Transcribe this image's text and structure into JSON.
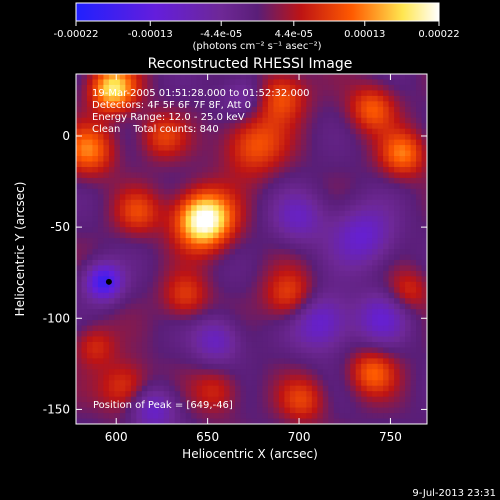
{
  "chart_data": {
    "type": "heatmap",
    "title": "Reconstructed RHESSI Image",
    "xlabel": "Heliocentric X (arcsec)",
    "ylabel": "Heliocentric Y (arcsec)",
    "xlim": [
      578,
      770
    ],
    "ylim": [
      -158,
      34
    ],
    "x_ticks": [
      600,
      650,
      700,
      750
    ],
    "y_ticks": [
      -150,
      -100,
      -50,
      0
    ],
    "colorbar": {
      "range": [
        -0.00022,
        0.00022
      ],
      "tick_values": [
        -0.00022,
        -0.00013,
        -4.4e-05,
        4.4e-05,
        0.00013,
        0.00022
      ],
      "tick_labels": [
        "-0.00022",
        "-0.00013",
        "-4.4e-05",
        "4.4e-05",
        "0.00013",
        "0.00022"
      ],
      "unit_label": "(photons cm⁻² s⁻¹ asec⁻²)",
      "colors": [
        "#2020ff",
        "#7020a0",
        "#c01010",
        "#ff6000",
        "#ffff80",
        "#ffffff"
      ]
    },
    "annotations": [
      "19-Mar-2005 01:51:28.000 to 01:52:32.000",
      "Detectors: 4F 5F 6F 7F 8F, Att 0",
      "Energy Range: 12.0 - 25.0 keV",
      "Clean    Total counts: 840"
    ],
    "peak_label": "Position of Peak = [649,-46]",
    "peak_position": [
      649,
      -46
    ],
    "marker_position": [
      596,
      -80
    ],
    "blobs": [
      {
        "x": 648,
        "y": -46,
        "amp": 1.0,
        "sigma": 11
      },
      {
        "x": 598,
        "y": 26,
        "amp": 0.75,
        "sigma": 9
      },
      {
        "x": 585,
        "y": -8,
        "amp": 0.5,
        "sigma": 10
      },
      {
        "x": 675,
        "y": -5,
        "amp": 0.45,
        "sigma": 12
      },
      {
        "x": 690,
        "y": 22,
        "amp": 0.45,
        "sigma": 10
      },
      {
        "x": 740,
        "y": 15,
        "amp": 0.45,
        "sigma": 9
      },
      {
        "x": 757,
        "y": -10,
        "amp": 0.5,
        "sigma": 9
      },
      {
        "x": 625,
        "y": 0,
        "amp": 0.35,
        "sigma": 9
      },
      {
        "x": 612,
        "y": -42,
        "amp": 0.35,
        "sigma": 9
      },
      {
        "x": 695,
        "y": -88,
        "amp": 0.4,
        "sigma": 10
      },
      {
        "x": 638,
        "y": -88,
        "amp": 0.35,
        "sigma": 9
      },
      {
        "x": 740,
        "y": -130,
        "amp": 0.45,
        "sigma": 9
      },
      {
        "x": 605,
        "y": -138,
        "amp": 0.4,
        "sigma": 10
      },
      {
        "x": 655,
        "y": -140,
        "amp": 0.3,
        "sigma": 9
      },
      {
        "x": 702,
        "y": -145,
        "amp": 0.35,
        "sigma": 9
      },
      {
        "x": 588,
        "y": -115,
        "amp": 0.3,
        "sigma": 8
      },
      {
        "x": 760,
        "y": -85,
        "amp": 0.3,
        "sigma": 8
      },
      {
        "x": 593,
        "y": -80,
        "amp": -0.75,
        "sigma": 7
      },
      {
        "x": 712,
        "y": -102,
        "amp": -0.5,
        "sigma": 11
      },
      {
        "x": 655,
        "y": -112,
        "amp": -0.4,
        "sigma": 9
      },
      {
        "x": 735,
        "y": -55,
        "amp": -0.45,
        "sigma": 12
      },
      {
        "x": 700,
        "y": -45,
        "amp": -0.35,
        "sigma": 10
      },
      {
        "x": 620,
        "y": -150,
        "amp": -0.45,
        "sigma": 9
      },
      {
        "x": 745,
        "y": -100,
        "amp": -0.4,
        "sigma": 10
      },
      {
        "x": 670,
        "y": 22,
        "amp": -0.3,
        "sigma": 9
      }
    ]
  },
  "footer": {
    "timestamp": "9-Jul-2013 23:31"
  }
}
